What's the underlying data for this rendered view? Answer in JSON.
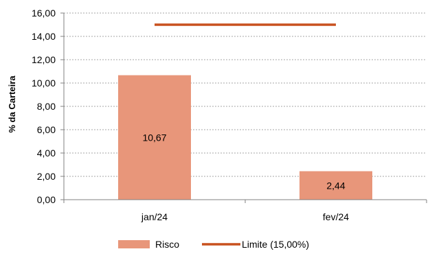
{
  "chart_data": {
    "type": "bar",
    "categories": [
      "jan/24",
      "fev/24"
    ],
    "series": [
      {
        "name": "Risco",
        "type": "bar",
        "values": [
          10.67,
          2.44
        ],
        "value_labels": [
          "10,67",
          "2,44"
        ],
        "color": "#E8967A"
      },
      {
        "name": "Limite (15,00%)",
        "type": "line",
        "values": [
          15.0,
          15.0
        ],
        "color": "#C8511E"
      }
    ],
    "title": "",
    "xlabel": "",
    "ylabel": "% da Carteira",
    "ylim": [
      0,
      16
    ],
    "yticks": [
      0,
      2,
      4,
      6,
      8,
      10,
      12,
      14,
      16
    ],
    "ytick_labels": [
      "0,00",
      "2,00",
      "4,00",
      "6,00",
      "8,00",
      "10,00",
      "12,00",
      "14,00",
      "16,00"
    ],
    "grid": true,
    "legend_position": "bottom-center",
    "colors": {
      "grid": "#A6A6A6",
      "axis": "#808080",
      "text": "#000000"
    }
  }
}
